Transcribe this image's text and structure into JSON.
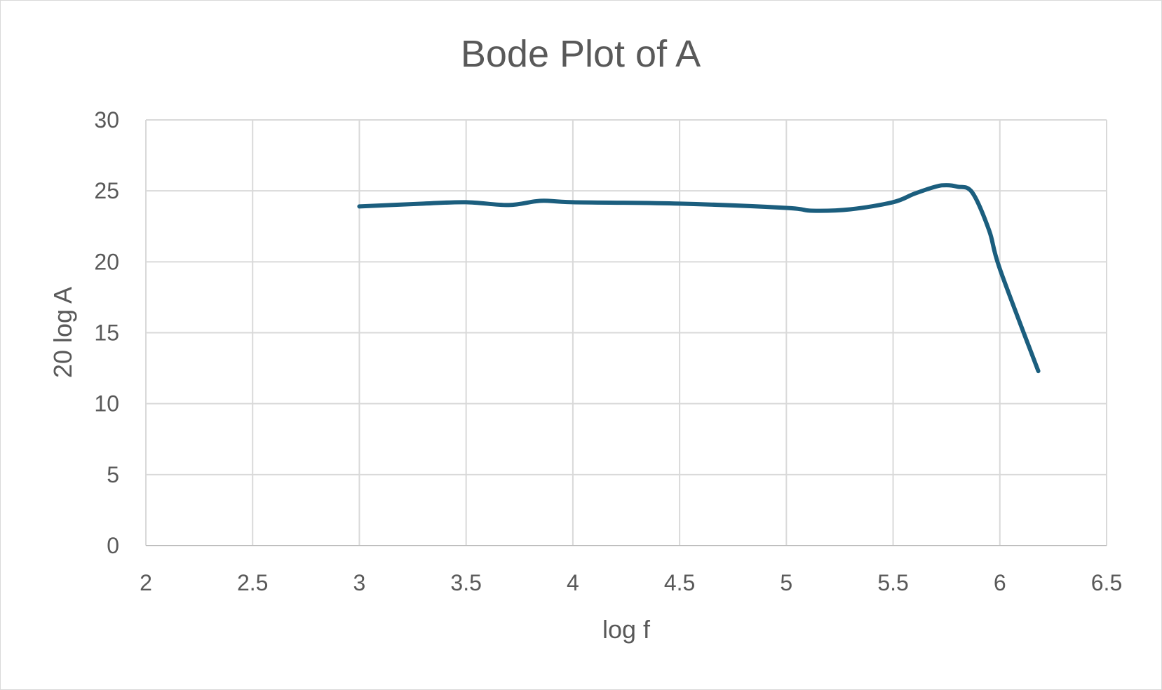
{
  "chart_data": {
    "type": "line",
    "title": "Bode Plot of A",
    "xlabel": "log f",
    "ylabel": "20 log A",
    "xlim": [
      2,
      6.5
    ],
    "ylim": [
      0,
      30
    ],
    "x_ticks": [
      2,
      2.5,
      3,
      3.5,
      4,
      4.5,
      5,
      5.5,
      6,
      6.5
    ],
    "y_ticks": [
      0,
      5,
      10,
      15,
      20,
      25,
      30
    ],
    "x_tick_labels": [
      "2",
      "2.5",
      "3",
      "3.5",
      "4",
      "4.5",
      "5",
      "5.5",
      "6",
      "6.5"
    ],
    "y_tick_labels": [
      "0",
      "5",
      "10",
      "15",
      "20",
      "25",
      "30"
    ],
    "grid": true,
    "legend": "none",
    "series": [
      {
        "color": "#1b5e7e",
        "x": [
          3.0,
          3.3,
          3.5,
          3.7,
          3.85,
          4.0,
          4.5,
          5.0,
          5.12,
          5.3,
          5.5,
          5.6,
          5.7,
          5.75,
          5.8,
          5.87,
          5.95,
          6.0,
          6.18
        ],
        "y": [
          23.9,
          24.1,
          24.2,
          24.0,
          24.3,
          24.2,
          24.1,
          23.8,
          23.6,
          23.7,
          24.2,
          24.8,
          25.3,
          25.4,
          25.3,
          24.9,
          22.2,
          19.5,
          12.3
        ]
      }
    ]
  }
}
